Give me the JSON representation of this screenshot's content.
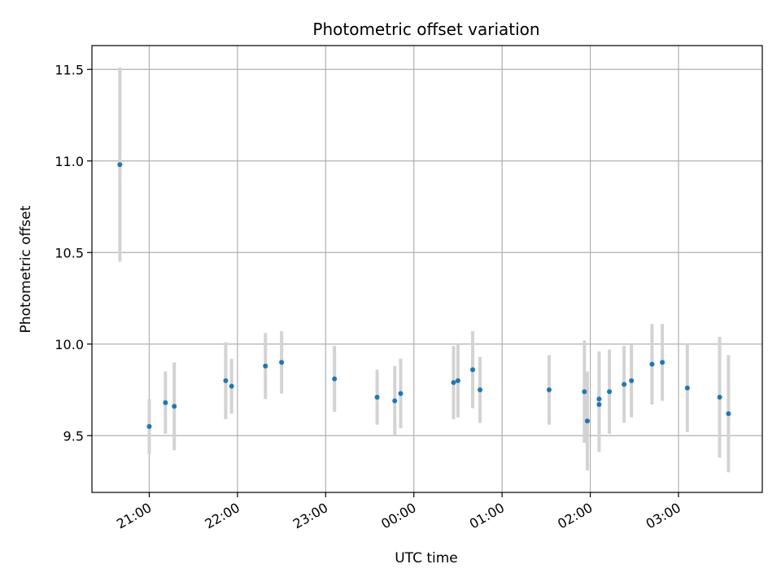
{
  "chart_data": {
    "type": "scatter",
    "title": "Photometric offset variation",
    "xlabel": "UTC time",
    "ylabel": "Photometric offset",
    "x_ticks": [
      "21:00",
      "22:00",
      "23:00",
      "00:00",
      "01:00",
      "02:00",
      "03:00"
    ],
    "y_ticks": [
      "9.5",
      "10.0",
      "10.5",
      "11.0",
      "11.5"
    ],
    "xlim": [
      "20:21",
      "03:57"
    ],
    "ylim": [
      9.19,
      11.63
    ],
    "grid": true,
    "colors": {
      "point": "#1f77b4",
      "errorbar": "#d3d3d3",
      "grid": "#b0b0b0"
    },
    "points": [
      {
        "time": "20:40",
        "value": 10.98,
        "err": 0.53
      },
      {
        "time": "21:00",
        "value": 9.55,
        "err": 0.15
      },
      {
        "time": "21:11",
        "value": 9.68,
        "err": 0.17
      },
      {
        "time": "21:17",
        "value": 9.66,
        "err": 0.24
      },
      {
        "time": "21:52",
        "value": 9.8,
        "err": 0.21
      },
      {
        "time": "21:56",
        "value": 9.77,
        "err": 0.15
      },
      {
        "time": "22:19",
        "value": 9.88,
        "err": 0.18
      },
      {
        "time": "22:30",
        "value": 9.9,
        "err": 0.17
      },
      {
        "time": "23:06",
        "value": 9.81,
        "err": 0.18
      },
      {
        "time": "23:35",
        "value": 9.71,
        "err": 0.15
      },
      {
        "time": "23:47",
        "value": 9.69,
        "err": 0.19
      },
      {
        "time": "23:51",
        "value": 9.73,
        "err": 0.19
      },
      {
        "time": "00:27",
        "value": 9.79,
        "err": 0.2
      },
      {
        "time": "00:30",
        "value": 9.8,
        "err": 0.2
      },
      {
        "time": "00:40",
        "value": 9.86,
        "err": 0.21
      },
      {
        "time": "00:45",
        "value": 9.75,
        "err": 0.18
      },
      {
        "time": "01:32",
        "value": 9.75,
        "err": 0.19
      },
      {
        "time": "01:56",
        "value": 9.74,
        "err": 0.28
      },
      {
        "time": "01:58",
        "value": 9.58,
        "err": 0.27
      },
      {
        "time": "02:06",
        "value": 9.67,
        "err": 0.26
      },
      {
        "time": "02:06",
        "value": 9.7,
        "err": 0.26
      },
      {
        "time": "02:13",
        "value": 9.74,
        "err": 0.23
      },
      {
        "time": "02:23",
        "value": 9.78,
        "err": 0.21
      },
      {
        "time": "02:28",
        "value": 9.8,
        "err": 0.2
      },
      {
        "time": "02:42",
        "value": 9.89,
        "err": 0.22
      },
      {
        "time": "02:49",
        "value": 9.9,
        "err": 0.21
      },
      {
        "time": "03:06",
        "value": 9.76,
        "err": 0.24
      },
      {
        "time": "03:28",
        "value": 9.71,
        "err": 0.33
      },
      {
        "time": "03:34",
        "value": 9.62,
        "err": 0.32
      }
    ]
  }
}
